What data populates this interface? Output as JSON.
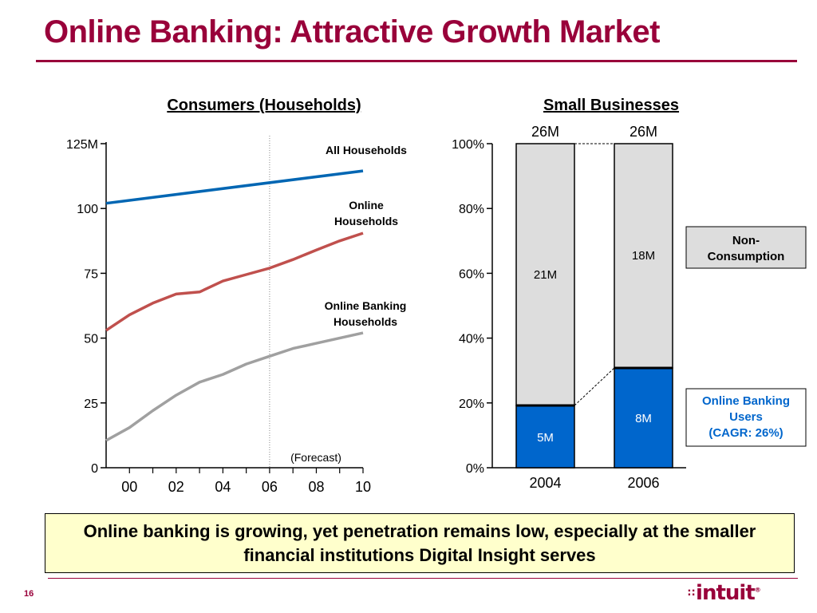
{
  "slide": {
    "title": "Online Banking: Attractive Growth Market",
    "callout": "Online banking is growing, yet penetration remains low, especially at the smaller financial institutions Digital Insight serves",
    "page_number": "16",
    "logo": "intuit",
    "logo_mark": "®",
    "accent_color": "#99003a"
  },
  "chart_data": [
    {
      "type": "line",
      "title": "Consumers (Households)",
      "x": [
        2000,
        2001,
        2002,
        2003,
        2004,
        2005,
        2006,
        2007,
        2008,
        2009,
        2010
      ],
      "x_tick_values": [
        2000,
        2002,
        2004,
        2006,
        2008,
        2010
      ],
      "x_tick_labels": [
        "00",
        "02",
        "04",
        "06",
        "08",
        "10"
      ],
      "xlim": [
        1999,
        2010
      ],
      "y_tick_values": [
        0,
        25,
        50,
        75,
        100,
        125
      ],
      "y_tick_labels": [
        "0",
        "25",
        "50",
        "75",
        "100",
        "125M"
      ],
      "ylim": [
        0,
        125
      ],
      "forecast_start": 2006,
      "forecast_label": "(Forecast)",
      "series": [
        {
          "name": "All Households",
          "color": "#0066b3",
          "points": [
            [
              1999,
              102
            ],
            [
              2010,
              114.5
            ]
          ]
        },
        {
          "name": "Online Households",
          "color": "#c0504d",
          "points": [
            [
              1999,
              53
            ],
            [
              2000,
              59
            ],
            [
              2001,
              63.5
            ],
            [
              2002,
              67
            ],
            [
              2003,
              67.8
            ],
            [
              2004,
              72
            ],
            [
              2005,
              74.5
            ],
            [
              2006,
              77
            ],
            [
              2007,
              80.3
            ],
            [
              2008,
              84
            ],
            [
              2009,
              87.5
            ],
            [
              2010,
              90.5
            ]
          ]
        },
        {
          "name": "Online Banking Households",
          "color": "#a0a0a0",
          "points": [
            [
              1999,
              10.5
            ],
            [
              2000,
              15.5
            ],
            [
              2001,
              22
            ],
            [
              2002,
              28
            ],
            [
              2003,
              33
            ],
            [
              2004,
              36
            ],
            [
              2005,
              40
            ],
            [
              2006,
              43
            ],
            [
              2007,
              46
            ],
            [
              2008,
              48
            ],
            [
              2009,
              50
            ],
            [
              2010,
              52
            ]
          ]
        }
      ],
      "series_labels": [
        {
          "lines": [
            "All Households"
          ]
        },
        {
          "lines": [
            "Online",
            "Households"
          ]
        },
        {
          "lines": [
            "Online Banking",
            "Households"
          ]
        }
      ]
    },
    {
      "type": "bar",
      "title": "Small Businesses",
      "categories": [
        "2004",
        "2006"
      ],
      "totals": [
        "26M",
        "26M"
      ],
      "ylim": [
        0,
        100
      ],
      "y_tick_values": [
        0,
        20,
        40,
        60,
        80,
        100
      ],
      "y_tick_labels": [
        "0%",
        "20%",
        "40%",
        "60%",
        "80%",
        "100%"
      ],
      "series": [
        {
          "name": "Online Banking Users",
          "color": "#0066cc",
          "values_percent": [
            19.2,
            30.8
          ],
          "value_labels": [
            "5M",
            "8M"
          ]
        },
        {
          "name": "Non-Consumption",
          "color": "#dddddd",
          "values_percent": [
            80.8,
            69.2
          ],
          "value_labels": [
            "21M",
            "18M"
          ]
        }
      ],
      "legend": [
        {
          "lines": [
            "Non-",
            "Consumption"
          ],
          "style": "gray"
        },
        {
          "lines": [
            "Online Banking",
            "Users",
            "(CAGR: 26%)"
          ],
          "style": "blue"
        }
      ]
    }
  ]
}
